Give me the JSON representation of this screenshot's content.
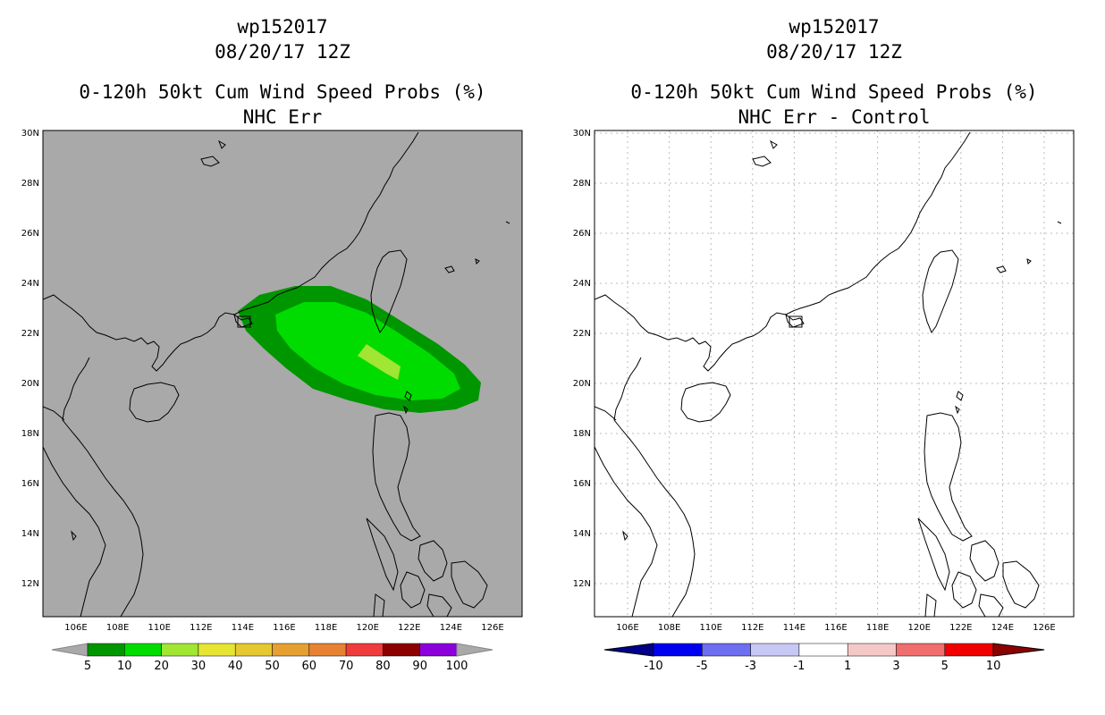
{
  "left_panel": {
    "title_line1": "wp152017",
    "title_line2": "08/20/17 12Z",
    "title_line3": "0-120h 50kt Cum Wind Speed Probs (%)",
    "title_line4": "NHC Err",
    "lat_labels": [
      "30N",
      "28N",
      "26N",
      "24N",
      "22N",
      "20N",
      "18N",
      "16N",
      "14N",
      "12N"
    ],
    "lon_labels": [
      "106E",
      "108E",
      "110E",
      "112E",
      "114E",
      "116E",
      "118E",
      "120E",
      "122E",
      "124E",
      "126E"
    ],
    "background_color": "#a9a9a9",
    "colorbar": {
      "colors": [
        "#009600",
        "#00dc00",
        "#a0e632",
        "#e6e632",
        "#e6c832",
        "#e6a032",
        "#e68232",
        "#f03c3c",
        "#8c0000",
        "#8c00dc"
      ],
      "labels": [
        "5",
        "10",
        "20",
        "30",
        "40",
        "50",
        "60",
        "70",
        "80",
        "90",
        "100"
      ]
    }
  },
  "right_panel": {
    "title_line1": "wp152017",
    "title_line2": "08/20/17 12Z",
    "title_line3": "0-120h 50kt Cum Wind Speed Probs (%)",
    "title_line4": "NHC Err - Control",
    "lat_labels": [
      "30N",
      "28N",
      "26N",
      "24N",
      "22N",
      "20N",
      "18N",
      "16N",
      "14N",
      "12N"
    ],
    "lon_labels": [
      "106E",
      "108E",
      "110E",
      "112E",
      "114E",
      "116E",
      "118E",
      "120E",
      "122E",
      "124E",
      "126E"
    ],
    "background_color": "#ffffff",
    "colorbar": {
      "colors": [
        "#00008c",
        "#0000f0",
        "#6e6ef0",
        "#c8c8f5",
        "#ffffff",
        "#f5c8c8",
        "#f06e6e",
        "#f00000",
        "#8c0000"
      ],
      "labels": [
        "-10",
        "-5",
        "-3",
        "-1",
        "1",
        "3",
        "5",
        "10"
      ]
    }
  }
}
